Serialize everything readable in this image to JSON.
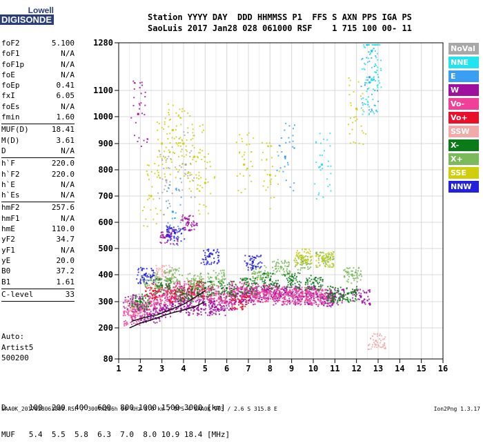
{
  "logo": {
    "line1": "Lowell",
    "line2": "DIGISONDE"
  },
  "header": {
    "line1": "Station YYYY DAY  DDD HHMMSS P1  FFS S AXN PPS IGA PS",
    "line2": "SaoLuis 2017 Jan28 028 061000 RSF    1 715 100 00- 11"
  },
  "params": {
    "group1": [
      {
        "k": "foF2",
        "v": "5.100"
      },
      {
        "k": "foF1",
        "v": "N/A"
      },
      {
        "k": "foF1p",
        "v": "N/A"
      },
      {
        "k": "foE",
        "v": "N/A"
      },
      {
        "k": "foEp",
        "v": "0.41"
      },
      {
        "k": "fxI",
        "v": "6.05"
      },
      {
        "k": "foEs",
        "v": "N/A"
      },
      {
        "k": "fmin",
        "v": "1.60"
      }
    ],
    "group2": [
      {
        "k": "MUF(D)",
        "v": "18.41"
      },
      {
        "k": "M(D)",
        "v": "3.61"
      },
      {
        "k": "D",
        "v": "N/A"
      }
    ],
    "group3": [
      {
        "k": "h`F",
        "v": "220.0"
      },
      {
        "k": "h`F2",
        "v": "220.0"
      },
      {
        "k": "h`E",
        "v": "N/A"
      },
      {
        "k": "h`Es",
        "v": "N/A"
      }
    ],
    "group4": [
      {
        "k": "hmF2",
        "v": "257.6"
      },
      {
        "k": "hmF1",
        "v": "N/A"
      },
      {
        "k": "hmE",
        "v": "110.0"
      },
      {
        "k": "yF2",
        "v": "34.7"
      },
      {
        "k": "yF1",
        "v": "N/A"
      },
      {
        "k": "yE",
        "v": "20.0"
      },
      {
        "k": "B0",
        "v": "37.2"
      },
      {
        "k": "B1",
        "v": "1.61"
      }
    ],
    "group5": [
      {
        "k": "C-level",
        "v": "33"
      }
    ]
  },
  "auto": {
    "line1": "Auto:",
    "line2": "Artist5",
    "line3": "500200"
  },
  "legend": [
    {
      "label": "NoVal",
      "color": "#a8a8a8"
    },
    {
      "label": "NNE",
      "color": "#22e3f0"
    },
    {
      "label": "E",
      "color": "#3a9ef2"
    },
    {
      "label": "W",
      "color": "#a0109f"
    },
    {
      "label": "Vo-",
      "color": "#f0409a"
    },
    {
      "label": "Vo+",
      "color": "#e8102a"
    },
    {
      "label": "SSW",
      "color": "#f2aaa8"
    },
    {
      "label": "X-",
      "color": "#0b7a18"
    },
    {
      "label": "X+",
      "color": "#7aba5a"
    },
    {
      "label": "SSE",
      "color": "#cfcf10"
    },
    {
      "label": "NNW",
      "color": "#2222dd"
    }
  ],
  "dtable": {
    "line1": "D     100  200  400  600  800 1000 1500 3000 [km]",
    "line2": "MUF   5.4  5.5  5.8  6.3  7.0  8.0 10.9 18.4 [MHz]"
  },
  "footer": "SAA0K_2017028061000.RSF / 300fx256h 50 kHz 5.0 km / DPS-4 SAA0K 903 / 2.6 S 315.8 E",
  "version": "Ion2Png 1.3.17",
  "chart_data": {
    "type": "scatter",
    "xlim": [
      1,
      16
    ],
    "ylim": [
      80,
      1280
    ],
    "xticks": [
      1,
      2,
      3,
      4,
      5,
      6,
      7,
      8,
      9,
      10,
      11,
      12,
      13,
      14,
      15,
      16
    ],
    "yticks": [
      80,
      200,
      300,
      400,
      500,
      600,
      700,
      800,
      900,
      1000,
      1100,
      1280
    ],
    "grid": true,
    "legend_position": "right",
    "series": [
      {
        "name": "NoVal",
        "color": "#a8a8a8",
        "points": [
          [
            1.8,
            300
          ],
          [
            3.2,
            760
          ],
          [
            4.1,
            820
          ]
        ]
      },
      {
        "name": "NNE",
        "color": "#22e3f0",
        "points": [
          [
            12.7,
            1250
          ],
          [
            12.7,
            1140
          ],
          [
            12.6,
            1130
          ],
          [
            10.4,
            820
          ]
        ]
      },
      {
        "name": "E",
        "color": "#3a9ef2",
        "points": [
          [
            12.6,
            1150
          ],
          [
            3.5,
            640
          ],
          [
            8.7,
            850
          ]
        ]
      },
      {
        "name": "W",
        "color": "#a0109f",
        "points": [
          [
            1.6,
            300
          ],
          [
            2.0,
            260
          ],
          [
            2.5,
            250
          ],
          [
            3.0,
            270
          ],
          [
            3.5,
            290
          ],
          [
            4.0,
            300
          ],
          [
            4.5,
            280
          ],
          [
            5.0,
            290
          ],
          [
            5.5,
            280
          ],
          [
            6.0,
            300
          ],
          [
            6.5,
            330
          ],
          [
            7.0,
            320
          ],
          [
            7.5,
            330
          ],
          [
            8.0,
            340
          ],
          [
            8.5,
            320
          ],
          [
            9.0,
            330
          ],
          [
            9.5,
            320
          ],
          [
            10.0,
            330
          ],
          [
            10.5,
            310
          ],
          [
            11.0,
            320
          ],
          [
            12.2,
            320
          ],
          [
            1.9,
            1010
          ],
          [
            3.3,
            550
          ],
          [
            4.2,
            600
          ]
        ]
      },
      {
        "name": "Vo-",
        "color": "#f0409a",
        "points": [
          [
            1.6,
            240
          ],
          [
            2.0,
            270
          ],
          [
            2.5,
            300
          ],
          [
            3.0,
            320
          ],
          [
            3.5,
            340
          ],
          [
            4.0,
            350
          ],
          [
            4.5,
            330
          ],
          [
            5.0,
            340
          ],
          [
            5.5,
            330
          ],
          [
            6.0,
            320
          ],
          [
            6.5,
            350
          ],
          [
            7.0,
            340
          ],
          [
            7.5,
            330
          ],
          [
            8.0,
            340
          ],
          [
            8.5,
            330
          ],
          [
            9.0,
            320
          ],
          [
            9.5,
            330
          ],
          [
            10.0,
            320
          ],
          [
            10.5,
            320
          ]
        ]
      },
      {
        "name": "Vo+",
        "color": "#e8102a",
        "points": [
          [
            2.6,
            340
          ],
          [
            3.6,
            330
          ],
          [
            4.6,
            350
          ],
          [
            6.6,
            300
          ]
        ]
      },
      {
        "name": "SSW",
        "color": "#f2aaa8",
        "points": [
          [
            12.9,
            150
          ],
          [
            1.7,
            280
          ],
          [
            3.1,
            410
          ]
        ]
      },
      {
        "name": "X-",
        "color": "#0b7a18",
        "points": [
          [
            2.0,
            300
          ],
          [
            3.0,
            360
          ],
          [
            4.0,
            330
          ],
          [
            5.0,
            350
          ],
          [
            6.0,
            350
          ],
          [
            7.0,
            360
          ],
          [
            8.0,
            380
          ],
          [
            9.0,
            380
          ],
          [
            10.0,
            370
          ],
          [
            11.0,
            330
          ],
          [
            11.6,
            330
          ]
        ]
      },
      {
        "name": "X+",
        "color": "#7aba5a",
        "points": [
          [
            2.5,
            380
          ],
          [
            3.5,
            400
          ],
          [
            4.5,
            380
          ],
          [
            5.5,
            390
          ],
          [
            7.5,
            410
          ],
          [
            8.5,
            430
          ],
          [
            9.5,
            450
          ],
          [
            10.5,
            460
          ],
          [
            11.8,
            400
          ]
        ]
      },
      {
        "name": "SSE",
        "color": "#cfcf10",
        "points": [
          [
            2.5,
            700
          ],
          [
            3.0,
            900
          ],
          [
            3.5,
            950
          ],
          [
            4.0,
            900
          ],
          [
            4.5,
            850
          ],
          [
            5.0,
            750
          ],
          [
            6.8,
            820
          ],
          [
            8.0,
            780
          ],
          [
            9.5,
            470
          ],
          [
            10.5,
            460
          ],
          [
            12.0,
            1030
          ]
        ]
      },
      {
        "name": "NNW",
        "color": "#2222dd",
        "points": [
          [
            2.2,
            400
          ],
          [
            3.6,
            560
          ],
          [
            5.2,
            470
          ],
          [
            7.2,
            450
          ]
        ]
      }
    ],
    "profile_curve": [
      [
        1.5,
        200
      ],
      [
        2.0,
        218
      ],
      [
        2.5,
        230
      ],
      [
        3.0,
        245
      ],
      [
        3.5,
        258
      ],
      [
        4.0,
        268
      ],
      [
        4.5,
        280
      ],
      [
        5.0,
        300
      ]
    ],
    "profile_curve2": [
      [
        1.6,
        225
      ],
      [
        2.2,
        240
      ],
      [
        2.8,
        250
      ],
      [
        3.4,
        270
      ],
      [
        4.0,
        290
      ],
      [
        4.6,
        320
      ],
      [
        5.0,
        340
      ]
    ]
  }
}
